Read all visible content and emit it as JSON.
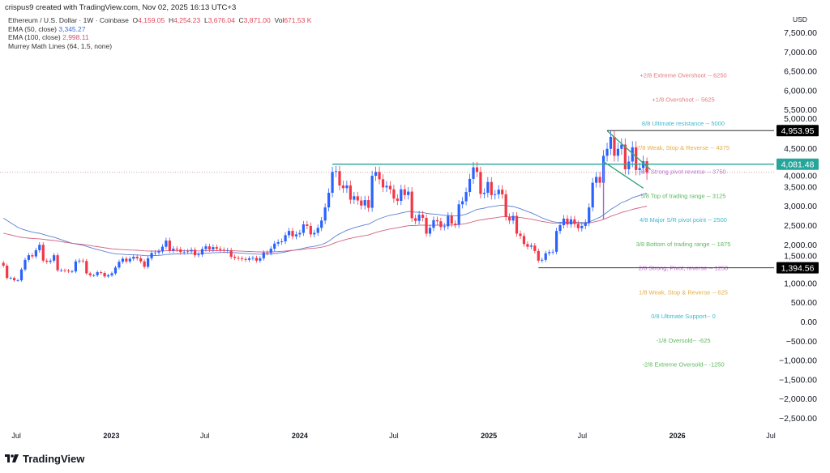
{
  "header": {
    "attribution": "crispus9 created with TradingView.com, Nov 02, 2025 16:13 UTC+3"
  },
  "legend": {
    "symbol": "Ethereum / U.S. Dollar · 1W · Coinbase",
    "open_label": "O",
    "open": "4,159.05",
    "high_label": "H",
    "high": "4,254.23",
    "low_label": "L",
    "low": "3,676.04",
    "close_label": "C",
    "close": "3,871.00",
    "vol_label": "Vol",
    "vol": "671.53 K",
    "ema50_label": "EMA (50, close)",
    "ema50_value": "3,345.27",
    "ema100_label": "EMA (100, close)",
    "ema100_value": "2,998.11",
    "murrey_label": "Murrey Math Lines (64, 1.5, none)"
  },
  "footer": {
    "brand": "TradingView"
  },
  "colors": {
    "up": "#2962ff",
    "down": "#f23645",
    "ema50": "#5b7fd1",
    "ema100": "#d4607e",
    "channel": "#3aa57a",
    "resistance": "#26a69a"
  },
  "chart_data": {
    "type": "candlestick",
    "title": "Ethereum / U.S. Dollar · 1W · Coinbase",
    "currency_label": "USD",
    "ylim": [
      -2800,
      7700
    ],
    "y_ticks": [
      "7,500.00",
      "7,000.00",
      "6,500.00",
      "6,000.00",
      "5,500.00",
      "5,000.00",
      "4,500.00",
      "4,000.00",
      "3,500.00",
      "3,000.00",
      "2,500.00",
      "2,000.00",
      "1,500.00",
      "1,000.00",
      "500.00",
      "0.00",
      "−500.00",
      "−1,000.00",
      "−1,500.00",
      "−2,000.00",
      "−2,500.00"
    ],
    "x_ticks": [
      {
        "label": "Jul",
        "date": "2022-07-01",
        "bold": false
      },
      {
        "label": "2023",
        "date": "2023-01-01",
        "bold": true
      },
      {
        "label": "Jul",
        "date": "2023-07-01",
        "bold": false
      },
      {
        "label": "2024",
        "date": "2024-01-01",
        "bold": true
      },
      {
        "label": "Jul",
        "date": "2024-07-01",
        "bold": false
      },
      {
        "label": "2025",
        "date": "2025-01-01",
        "bold": true
      },
      {
        "label": "Jul",
        "date": "2025-07-01",
        "bold": false
      },
      {
        "label": "2026",
        "date": "2026-01-01",
        "bold": true
      },
      {
        "label": "Jul",
        "date": "2026-07-01",
        "bold": false
      }
    ],
    "first_week": "2022-06-06",
    "weekly_close": [
      1450,
      1130,
      1130,
      1070,
      1070,
      1350,
      1600,
      1720,
      1690,
      1850,
      1990,
      1580,
      1550,
      1580,
      1720,
      1330,
      1330,
      1320,
      1300,
      1300,
      1560,
      1580,
      1570,
      1250,
      1200,
      1200,
      1280,
      1260,
      1170,
      1200,
      1250,
      1400,
      1550,
      1630,
      1560,
      1630,
      1680,
      1640,
      1560,
      1420,
      1640,
      1780,
      1790,
      1820,
      1940,
      2100,
      1840,
      1890,
      1870,
      1800,
      1810,
      1820,
      1860,
      1720,
      1740,
      1880,
      1950,
      1870,
      1930,
      1890,
      1860,
      1840,
      1850,
      1680,
      1650,
      1640,
      1620,
      1600,
      1640,
      1650,
      1580,
      1640,
      1790,
      1780,
      1890,
      2020,
      2060,
      2080,
      2240,
      2350,
      2210,
      2260,
      2300,
      2520,
      2480,
      2260,
      2300,
      2430,
      2620,
      2960,
      3340,
      3880,
      3900,
      3530,
      3460,
      3530,
      3160,
      3250,
      3140,
      3010,
      3150,
      2950,
      3780,
      3880,
      3690,
      3480,
      3520,
      3430,
      3190,
      3130,
      3430,
      3280,
      3370,
      2680,
      2610,
      2770,
      2690,
      2280,
      2430,
      2630,
      2600,
      2450,
      2470,
      2740,
      2540,
      2510,
      3040,
      3120,
      3360,
      3700,
      4000,
      3880,
      3310,
      3340,
      3620,
      3280,
      3300,
      3420,
      3300,
      2710,
      2620,
      2740,
      2280,
      2220,
      2010,
      1940,
      1970,
      1830,
      1580,
      1600,
      1770,
      1800,
      1810,
      2350,
      2500,
      2670,
      2520,
      2650,
      2530,
      2420,
      2480,
      2560,
      2960,
      3600,
      3750,
      3600,
      4300,
      4480,
      4790,
      4300,
      4480,
      4590,
      3950,
      4150,
      4520,
      3930,
      3980,
      4159.05,
      3871.0
    ],
    "last_candle": {
      "open": 4159.05,
      "high": 4254.23,
      "low": 3676.04,
      "close": 3871.0
    },
    "ema_series": [
      {
        "name": "EMA (50, close)",
        "period": 50,
        "last": 3345.27
      },
      {
        "name": "EMA (100, close)",
        "period": 100,
        "last": 2998.11
      }
    ],
    "price_labels": [
      {
        "value": 4953.95,
        "text": "4,953.95",
        "style": "black",
        "from": "2025-08-18"
      },
      {
        "value": 4081.48,
        "text": "4,081.48",
        "style": "teal",
        "from": "2024-03-04"
      },
      {
        "value": 1394.56,
        "text": "1,394.56",
        "style": "black",
        "from": "2025-04-07"
      }
    ],
    "channel": [
      {
        "from": {
          "date": "2025-08-18",
          "value": 4950
        },
        "to": {
          "date": "2025-11-10",
          "value": 3940
        }
      },
      {
        "from": {
          "date": "2025-08-11",
          "value": 4150
        },
        "to": {
          "date": "2025-10-27",
          "value": 3460
        }
      }
    ],
    "vertical_marker": {
      "date": "2025-08-11",
      "from": 4150,
      "to": 2650
    },
    "murrey_lines": [
      {
        "text": "+2/8 Extreme Overshoot --  6250",
        "value": 6250,
        "color": "#e07c7c"
      },
      {
        "text": "+1/8 Overshoot --  5625",
        "value": 5625,
        "color": "#e07c7c"
      },
      {
        "text": "8/8 Ultimate resistance --  5000",
        "value": 5000,
        "color": "#3fb8cf"
      },
      {
        "text": "7/8 Weak, Stop & Reverse --  4375",
        "value": 4375,
        "color": "#e6ad45"
      },
      {
        "text": "6/8 Strong pivot reverse --  3750",
        "value": 3750,
        "color": "#c46fd6"
      },
      {
        "text": "5/8 Top of trading range --  3125",
        "value": 3125,
        "color": "#5cb85c"
      },
      {
        "text": "4/8 Major S/R pivot point --  2500",
        "value": 2500,
        "color": "#3fb8cf"
      },
      {
        "text": "3/8 Bottom of trading range --  1875",
        "value": 1875,
        "color": "#5cb85c"
      },
      {
        "text": "2/8 Strong, Pivot, reverse --  1250",
        "value": 1250,
        "color": "#c46fd6"
      },
      {
        "text": "1/8 Weak, Stop & Reverse --  625",
        "value": 625,
        "color": "#e6ad45"
      },
      {
        "text": "0/8 Ultimate Support--  0",
        "value": 0,
        "color": "#3fb8cf"
      },
      {
        "text": "-1/8 Oversold--  -625",
        "value": -625,
        "color": "#5cb85c"
      },
      {
        "text": "-2/8 Extreme Oversold--  -1250",
        "value": -1250,
        "color": "#5cb85c"
      }
    ]
  }
}
